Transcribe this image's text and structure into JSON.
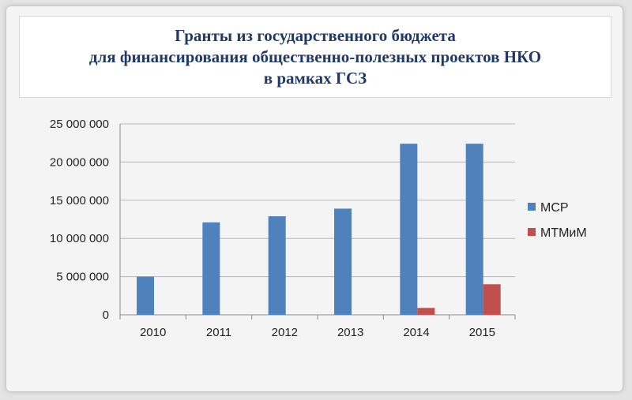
{
  "chart_data": {
    "type": "bar",
    "title_lines": [
      "Гранты из государственного бюджета",
      "для финансирования общественно-полезных проектов НКО",
      "в рамках ГСЗ"
    ],
    "categories": [
      "2010",
      "2011",
      "2012",
      "2013",
      "2014",
      "2015"
    ],
    "series": [
      {
        "name": "МСР",
        "values": [
          5000000,
          12100000,
          12900000,
          13900000,
          22400000,
          22400000
        ],
        "color": "#4f81bd"
      },
      {
        "name": "МТМиМ",
        "values": [
          0,
          0,
          0,
          0,
          900000,
          4000000
        ],
        "color": "#c0504d"
      }
    ],
    "ylim": [
      0,
      25000000
    ],
    "yticks": [
      0,
      5000000,
      10000000,
      15000000,
      20000000,
      25000000
    ],
    "ytick_labels": [
      "0",
      "5 000 000",
      "10 000 000",
      "15 000 000",
      "20 000 000",
      "25 000 000"
    ],
    "grid": true,
    "legend_position": "right"
  }
}
